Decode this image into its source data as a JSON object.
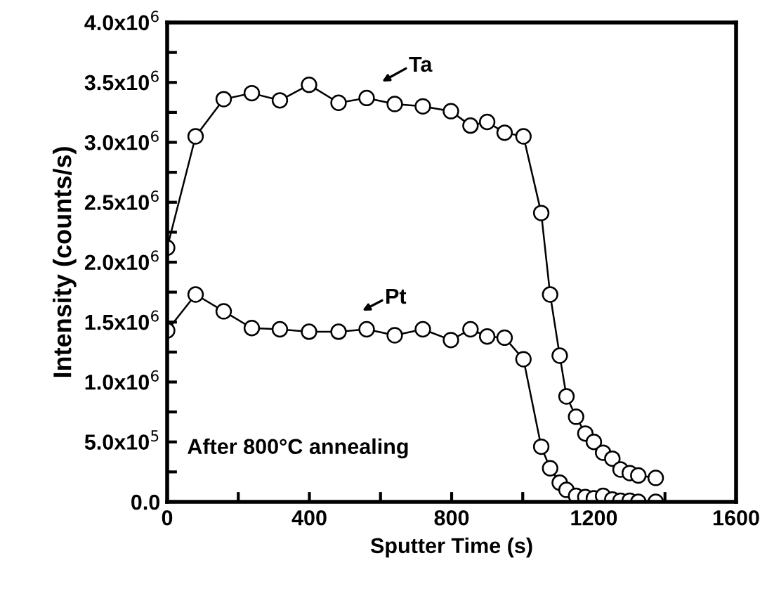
{
  "chart_data": {
    "type": "line",
    "xlabel": "Sputter Time (s)",
    "ylabel": "Intensity (counts/s)",
    "xlim": [
      0,
      1600
    ],
    "ylim": [
      0,
      4000000
    ],
    "xticks": [
      0,
      {
        "value": 200,
        "label": null
      },
      400,
      {
        "value": 600,
        "label": null
      },
      800,
      {
        "value": 1000,
        "label": null
      },
      1200,
      {
        "value": 1400,
        "label": null
      },
      1600
    ],
    "yticks": [
      {
        "value": 0,
        "label": "0.0"
      },
      {
        "value": 250000,
        "label": null
      },
      {
        "value": 500000,
        "label": "5.0x10$^{5}$"
      },
      {
        "value": 750000,
        "label": null
      },
      {
        "value": 1000000,
        "label": "1.0x10$^{6}$"
      },
      {
        "value": 1250000,
        "label": null
      },
      {
        "value": 1500000,
        "label": "1.5x10$^{6}$"
      },
      {
        "value": 1750000,
        "label": null
      },
      {
        "value": 2000000,
        "label": "2.0x10$^{6}$"
      },
      {
        "value": 2250000,
        "label": null
      },
      {
        "value": 2500000,
        "label": "2.5x10$^{6}$"
      },
      {
        "value": 2750000,
        "label": null
      },
      {
        "value": 3000000,
        "label": "3.0x10$^{6}$"
      },
      {
        "value": 3250000,
        "label": null
      },
      {
        "value": 3500000,
        "label": "3.5x10$^{6}$"
      },
      {
        "value": 3750000,
        "label": null
      },
      {
        "value": 4000000,
        "label": "4.0x10$^{6}$"
      }
    ],
    "x": [
      0,
      80,
      159,
      238,
      317,
      399,
      482,
      561,
      640,
      719,
      798,
      853,
      900,
      949,
      1002,
      1052,
      1077,
      1104,
      1123,
      1150,
      1176,
      1200,
      1226,
      1252,
      1275,
      1301,
      1325,
      1374
    ],
    "marker": "circle",
    "grid": false,
    "legend": false,
    "series": [
      {
        "color": "#000000",
        "values": [
          2120000,
          3050000,
          3360000,
          3410000,
          3350000,
          3480000,
          3330000,
          3370000,
          3320000,
          3300000,
          3260000,
          3140000,
          3170000,
          3080000,
          3050000,
          2410000,
          1730000,
          1220000,
          880000,
          710000,
          570000,
          500000,
          410000,
          360000,
          270000,
          240000,
          220000,
          200000
        ]
      },
      {
        "color": "#000000",
        "values": [
          1430000,
          1730000,
          1590000,
          1450000,
          1440000,
          1420000,
          1420000,
          1440000,
          1390000,
          1440000,
          1350000,
          1440000,
          1380000,
          1370000,
          1190000,
          460000,
          280000,
          160000,
          100000,
          50000,
          40000,
          30000,
          50000,
          20000,
          10000,
          10000,
          0,
          0
        ]
      }
    ],
    "annotations": [
      "Ta",
      "Pt",
      "After 800°C annealing"
    ]
  }
}
